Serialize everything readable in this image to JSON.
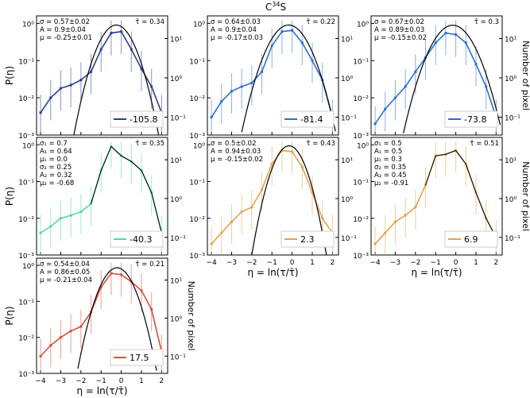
{
  "figure_title_main": "C",
  "figure_title_sup": "34",
  "figure_title_rest": "S",
  "colors": {
    "blue": "#2a3f8f",
    "blue2": "#2b6fd6",
    "green": "#52d9a6",
    "orange": "#e3a34f",
    "red": "#d9503f"
  },
  "chart_data": [
    {
      "type": "line",
      "id": "p1",
      "velocity": "-105.8",
      "color": "#2a3f8f",
      "params": [
        "σ = 0.57±0.02",
        "A = 0.9±0.04",
        "μ = -0.25±0.01"
      ],
      "tau": "τ̄ = 0.34",
      "fit": {
        "A": 0.9,
        "mu": -0.25,
        "sigma": 0.57
      },
      "x": [
        -4,
        -3.5,
        -3,
        -2.5,
        -2,
        -1.5,
        -1,
        -0.5,
        0,
        0.5,
        1,
        1.5,
        2
      ],
      "y": [
        0.004,
        0.01,
        0.018,
        0.022,
        0.03,
        0.05,
        0.2,
        0.55,
        0.6,
        0.2,
        0.06,
        0.02,
        0.004
      ]
    },
    {
      "type": "line",
      "id": "p2",
      "velocity": "-81.4",
      "color": "#2b6fd6",
      "params": [
        "σ = 0.64±0.03",
        "A = 0.9±0.04",
        "μ = -0.17±0.03"
      ],
      "tau": "τ̄ = 0.22",
      "fit": {
        "A": 0.9,
        "mu": -0.17,
        "sigma": 0.64
      },
      "x": [
        -4,
        -3.5,
        -3,
        -2.5,
        -2,
        -1.5,
        -1,
        -0.5,
        0,
        0.5,
        1,
        1.5,
        2
      ],
      "y": [
        0.003,
        0.008,
        0.015,
        0.02,
        0.025,
        0.05,
        0.25,
        0.6,
        0.65,
        0.3,
        0.1,
        0.03,
        0.003
      ]
    },
    {
      "type": "line",
      "id": "p3",
      "velocity": "-73.8",
      "color": "#2b6fd6",
      "params": [
        "σ = 0.67±0.02",
        "A = 0.89±0.03",
        "μ = -0.15±0.02"
      ],
      "tau": "τ̄ = 0.3",
      "fit": {
        "A": 0.89,
        "mu": -0.15,
        "sigma": 0.67
      },
      "x": [
        -4,
        -3.5,
        -3,
        -2.5,
        -2,
        -1.5,
        -1,
        -0.5,
        0,
        0.5,
        1,
        1.5,
        2
      ],
      "y": [
        0.002,
        0.005,
        0.01,
        0.02,
        0.05,
        0.12,
        0.3,
        0.55,
        0.5,
        0.3,
        0.08,
        0.02,
        0.003
      ]
    },
    {
      "type": "line",
      "id": "p4",
      "velocity": "-40.3",
      "color": "#52d9a6",
      "params": [
        "σ₁ = 0.7",
        "A₁ = 0.64",
        "μ₁ = 0.0",
        "σ₂ = 0.25",
        "A₂ = 0.32",
        "μ₂ = -0.68"
      ],
      "tau": "τ̄ = 0.35",
      "fit": null,
      "x": [
        -4,
        -3.5,
        -3,
        -2.5,
        -2,
        -1.5,
        -1,
        -0.5,
        0,
        0.5,
        1,
        1.5,
        2
      ],
      "y": [
        0.004,
        0.006,
        0.01,
        0.012,
        0.015,
        0.025,
        0.2,
        0.9,
        0.5,
        0.35,
        0.2,
        0.05,
        0.004
      ]
    },
    {
      "type": "line",
      "id": "p5",
      "velocity": "2.3",
      "color": "#e3a34f",
      "params": [
        "σ = 0.5±0.02",
        "A = 0.94±0.03",
        "μ = -0.15±0.02"
      ],
      "tau": "τ̄ = 0.43",
      "fit": {
        "A": 0.94,
        "mu": -0.15,
        "sigma": 0.5
      },
      "x": [
        -4,
        -3.5,
        -3,
        -2.5,
        -2,
        -1.5,
        -1,
        -0.5,
        0,
        0.5,
        1,
        1.5,
        2
      ],
      "y": [
        0.002,
        0.004,
        0.008,
        0.015,
        0.02,
        0.06,
        0.3,
        0.7,
        0.65,
        0.25,
        0.05,
        0.01,
        0.004
      ]
    },
    {
      "type": "line",
      "id": "p6",
      "velocity": "6.9",
      "color": "#e3a34f",
      "params": [
        "σ₁ = 0.5",
        "A₁ = 0.5",
        "μ₁ = 0.3",
        "σ₂ = 0.35",
        "A₂ = 0.45",
        "μ₂ = -0.91"
      ],
      "tau": "τ̄ = 0.51",
      "fit": null,
      "x": [
        -4,
        -3.5,
        -3,
        -2.5,
        -2,
        -1.5,
        -1,
        -0.5,
        0,
        0.5,
        1,
        1.5,
        2
      ],
      "y": [
        0.002,
        0.004,
        0.008,
        0.012,
        0.02,
        0.08,
        0.5,
        0.55,
        0.7,
        0.3,
        0.05,
        0.01,
        0.003
      ]
    },
    {
      "type": "line",
      "id": "p7",
      "velocity": "17.5",
      "color": "#d9503f",
      "params": [
        "σ = 0.54±0.04",
        "A = 0.86±0.05",
        "μ = -0.21±0.04"
      ],
      "tau": "τ̄ = 0.21",
      "fit": {
        "A": 0.86,
        "mu": -0.21,
        "sigma": 0.54
      },
      "x": [
        -4,
        -3.5,
        -3,
        -2.5,
        -2,
        -1.5,
        -1,
        -0.5,
        0,
        0.5,
        1,
        1.5,
        2
      ],
      "y": [
        0.003,
        0.006,
        0.01,
        0.015,
        0.02,
        0.05,
        0.25,
        0.6,
        0.55,
        0.35,
        0.2,
        0.06,
        0.004
      ]
    }
  ],
  "axes": {
    "ylabel": "P(η)",
    "ylabel_right": "Number of pixel",
    "xlabel": "η = ln(τ/τ̄)",
    "x_ticks": [
      "−4",
      "−3",
      "−2",
      "−1",
      "0",
      "1",
      "2"
    ],
    "y_ticks": [
      "10⁻³",
      "10⁻²",
      "10⁻¹",
      "10⁰"
    ],
    "y_ticks_right": [
      "10⁻¹",
      "10⁰",
      "10¹"
    ],
    "xlim": [
      -4.2,
      2.3
    ],
    "ylim_log": [
      -3,
      0.2
    ]
  }
}
